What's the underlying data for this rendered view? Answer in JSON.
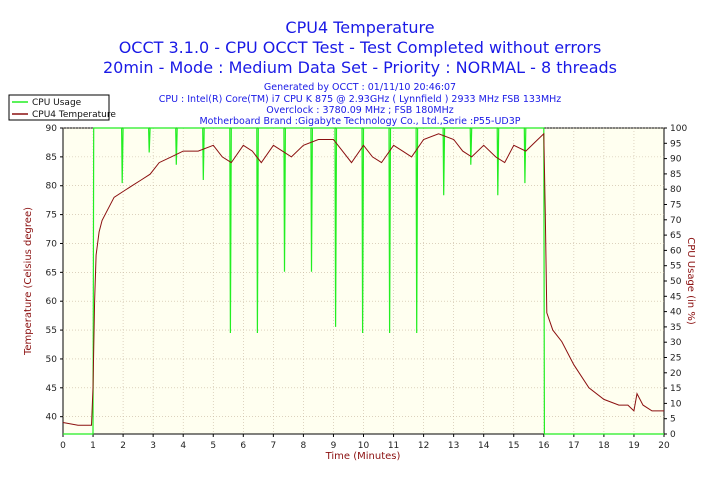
{
  "header": {
    "title": "CPU4 Temperature",
    "subtitle1": "OCCT 3.1.0 - CPU OCCT Test - Test Completed without errors",
    "subtitle2": "20min - Mode : Medium Data Set - Priority : NORMAL - 8 threads"
  },
  "info": {
    "generated": "Generated by OCCT : 01/11/10 20:46:07",
    "cpu": "CPU : Intel(R) Core(TM) i7 CPU K 875 @ 2.93GHz ( Lynnfield ) 2933 MHz FSB 133MHz",
    "overclock": "Overclock : 3780.09 MHz ; FSB 180MHz",
    "motherboard": "Motherboard Brand :Gigabyte Technology Co., Ltd.,Serie :P55-UD3P"
  },
  "colors": {
    "temperature": "#8b1010",
    "usage": "#22ee22",
    "title": "#1a1ae6",
    "plot_bg": "#fffff0",
    "grid": "#c8b8a0"
  },
  "chart_data": {
    "type": "line",
    "xlabel": "Time (Minutes)",
    "ylabel_left": "Temperature (Celsius degree)",
    "ylabel_right": "CPU Usage (in %)",
    "xlim": [
      0,
      20
    ],
    "ylim_left": [
      37,
      90
    ],
    "ylim_right": [
      0,
      100
    ],
    "x_ticks": [
      0,
      1,
      2,
      3,
      4,
      5,
      6,
      7,
      8,
      9,
      10,
      11,
      12,
      13,
      14,
      15,
      16,
      17,
      18,
      19,
      20
    ],
    "y_ticks_left": [
      40,
      45,
      50,
      55,
      60,
      65,
      70,
      75,
      80,
      85,
      90
    ],
    "y_ticks_right": [
      0,
      5,
      10,
      15,
      20,
      25,
      30,
      35,
      40,
      45,
      50,
      55,
      60,
      65,
      70,
      75,
      80,
      85,
      90,
      95,
      100
    ],
    "grid": true,
    "legend_position": "top-left",
    "series": [
      {
        "name": "CPU Usage",
        "axis": "right",
        "x": [
          0,
          1.0,
          1.02,
          1.95,
          1.97,
          2.0,
          2.85,
          2.87,
          2.9,
          3.75,
          3.77,
          3.8,
          4.65,
          4.67,
          4.7,
          5.55,
          5.57,
          5.6,
          6.45,
          6.47,
          6.5,
          7.35,
          7.37,
          7.4,
          8.25,
          8.27,
          8.3,
          9.05,
          9.07,
          9.1,
          9.95,
          9.97,
          10.0,
          10.85,
          10.87,
          10.9,
          11.75,
          11.77,
          11.8,
          12.65,
          12.67,
          12.7,
          13.55,
          13.57,
          13.6,
          14.45,
          14.47,
          14.5,
          15.35,
          15.37,
          15.4,
          16.0,
          16.02,
          20
        ],
        "values": [
          0,
          0,
          100,
          100,
          82,
          100,
          100,
          92,
          100,
          100,
          88,
          100,
          100,
          83,
          100,
          100,
          33,
          100,
          100,
          33,
          100,
          100,
          53,
          100,
          100,
          53,
          100,
          100,
          35,
          100,
          100,
          33,
          100,
          100,
          33,
          100,
          100,
          33,
          100,
          100,
          78,
          100,
          100,
          88,
          100,
          100,
          78,
          100,
          100,
          82,
          100,
          100,
          0,
          0
        ]
      },
      {
        "name": "CPU4 Temperature",
        "axis": "left",
        "x": [
          0,
          0.5,
          0.95,
          1.0,
          1.05,
          1.1,
          1.2,
          1.3,
          1.5,
          1.7,
          2.0,
          2.3,
          2.6,
          2.9,
          3.2,
          3.6,
          4.0,
          4.5,
          5.0,
          5.3,
          5.6,
          6.0,
          6.3,
          6.6,
          7.0,
          7.3,
          7.6,
          8.0,
          8.5,
          9.0,
          9.3,
          9.6,
          10.0,
          10.3,
          10.6,
          11.0,
          11.3,
          11.6,
          12.0,
          12.5,
          13.0,
          13.3,
          13.6,
          14.0,
          14.4,
          14.7,
          15.0,
          15.4,
          15.8,
          16.0,
          16.05,
          16.1,
          16.3,
          16.6,
          17.0,
          17.5,
          18.0,
          18.5,
          18.8,
          19.0,
          19.1,
          19.3,
          19.6,
          20
        ],
        "values": [
          39,
          38.5,
          38.5,
          45,
          60,
          68,
          72,
          74,
          76,
          78,
          79,
          80,
          81,
          82,
          84,
          85,
          86,
          86,
          87,
          85,
          84,
          87,
          86,
          84,
          87,
          86,
          85,
          87,
          88,
          88,
          86,
          84,
          87,
          85,
          84,
          87,
          86,
          85,
          88,
          89,
          88,
          86,
          85,
          87,
          85,
          84,
          87,
          86,
          88,
          89,
          75,
          58,
          55,
          53,
          49,
          45,
          43,
          42,
          42,
          41,
          44,
          42,
          41,
          41
        ]
      }
    ]
  }
}
